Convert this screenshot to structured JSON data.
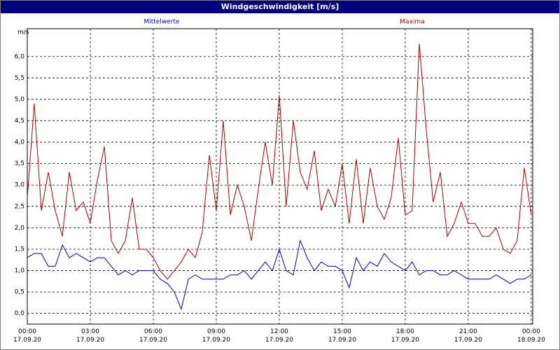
{
  "chart_data": {
    "type": "line",
    "title": "Windgeschwindigkeit [m/s]",
    "y_unit": "m/s",
    "x": [
      0,
      0.33,
      0.67,
      1,
      1.33,
      1.67,
      2,
      2.33,
      2.67,
      3,
      3.33,
      3.67,
      4,
      4.33,
      4.67,
      5,
      5.33,
      5.67,
      6,
      6.33,
      6.67,
      7,
      7.33,
      7.67,
      8,
      8.33,
      8.67,
      9,
      9.33,
      9.67,
      10,
      10.33,
      10.67,
      11,
      11.33,
      11.67,
      12,
      12.33,
      12.67,
      13,
      13.33,
      13.67,
      14,
      14.33,
      14.67,
      15,
      15.33,
      15.67,
      16,
      16.33,
      16.67,
      17,
      17.33,
      17.67,
      18,
      18.33,
      18.67,
      19,
      19.33,
      19.67,
      20,
      20.33,
      20.67,
      21,
      21.33,
      21.67,
      22,
      22.33,
      22.67,
      23,
      23.33,
      23.67,
      24
    ],
    "series": [
      {
        "name": "Mittelwerte",
        "color": "#0000c0",
        "values": [
          1.3,
          1.4,
          1.4,
          1.1,
          1.1,
          1.6,
          1.3,
          1.4,
          1.3,
          1.2,
          1.3,
          1.3,
          1.1,
          0.9,
          1.0,
          0.9,
          1.0,
          1.0,
          1.0,
          0.8,
          0.7,
          0.5,
          0.1,
          0.8,
          0.9,
          0.8,
          0.8,
          0.8,
          0.8,
          0.9,
          0.9,
          1.0,
          0.8,
          1.0,
          1.2,
          1.0,
          1.5,
          1.0,
          0.9,
          1.7,
          1.3,
          1.0,
          1.2,
          1.1,
          1.1,
          1.0,
          0.6,
          1.3,
          1.0,
          1.2,
          1.1,
          1.4,
          1.2,
          1.1,
          1.0,
          1.2,
          0.9,
          1.0,
          1.0,
          0.9,
          0.9,
          1.0,
          0.9,
          0.8,
          0.8,
          0.8,
          0.8,
          0.9,
          0.8,
          0.7,
          0.8,
          0.8,
          0.9
        ]
      },
      {
        "name": "Maxima",
        "color": "#b00000",
        "values": [
          2.7,
          4.9,
          2.4,
          3.3,
          2.4,
          1.8,
          3.3,
          2.4,
          2.6,
          2.1,
          3.1,
          3.9,
          1.7,
          1.4,
          1.7,
          2.7,
          1.5,
          1.5,
          1.3,
          1.0,
          0.8,
          1.0,
          1.2,
          1.5,
          1.3,
          1.9,
          3.7,
          2.4,
          4.5,
          2.3,
          3.0,
          2.5,
          1.7,
          2.9,
          4.0,
          3.0,
          5.1,
          2.5,
          4.5,
          3.3,
          2.9,
          3.8,
          2.4,
          2.9,
          2.5,
          3.5,
          2.1,
          3.6,
          2.1,
          3.4,
          2.5,
          2.2,
          2.7,
          4.1,
          2.3,
          2.4,
          6.3,
          4.3,
          2.6,
          3.3,
          1.8,
          2.1,
          2.6,
          2.1,
          2.1,
          1.8,
          1.8,
          2.0,
          1.5,
          1.4,
          1.7,
          3.4,
          2.3
        ]
      }
    ],
    "xlim": [
      0,
      24.07
    ],
    "xticks": [
      {
        "value": 0,
        "label": "00:00\n17.09.20"
      },
      {
        "value": 3,
        "label": "03:00\n17.09.20"
      },
      {
        "value": 6,
        "label": "06:00\n17.09.20"
      },
      {
        "value": 9,
        "label": "09:00\n17.09.20"
      },
      {
        "value": 12,
        "label": "12:00\n17.09.20"
      },
      {
        "value": 15,
        "label": "15:00\n17.09.20"
      },
      {
        "value": 18,
        "label": "18:00\n17.09.20"
      },
      {
        "value": 21,
        "label": "21:00\n17.09.20"
      },
      {
        "value": 24,
        "label": "00:00\n18.09.20"
      }
    ],
    "ylim": [
      -0.25,
      6.65
    ],
    "yticks": [
      {
        "value": 0,
        "label": "0,0"
      },
      {
        "value": 0.5,
        "label": "0,5"
      },
      {
        "value": 1,
        "label": "1,0"
      },
      {
        "value": 1.5,
        "label": "1,5"
      },
      {
        "value": 2,
        "label": "2,0"
      },
      {
        "value": 2.5,
        "label": "2,5"
      },
      {
        "value": 3,
        "label": "3,0"
      },
      {
        "value": 3.5,
        "label": "3,5"
      },
      {
        "value": 4,
        "label": "4,0"
      },
      {
        "value": 4.5,
        "label": "4,5"
      },
      {
        "value": 5,
        "label": "5,0"
      },
      {
        "value": 5.5,
        "label": "5,5"
      },
      {
        "value": 6,
        "label": "6,0"
      }
    ],
    "grid": true
  }
}
